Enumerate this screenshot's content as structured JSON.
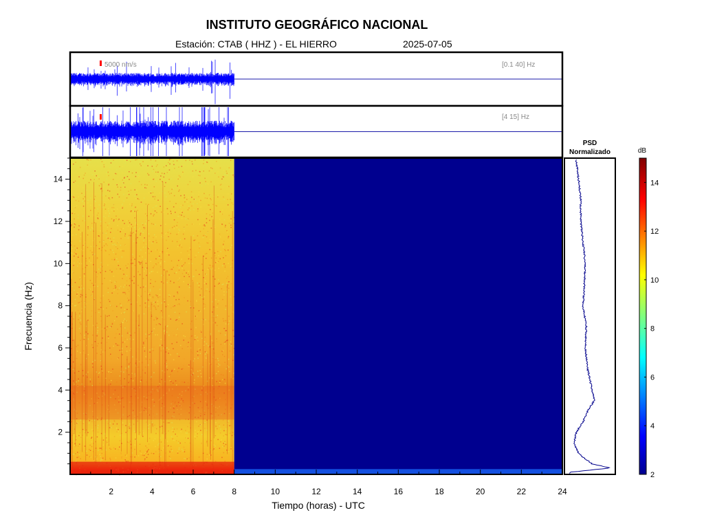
{
  "header": {
    "institution": "INSTITUTO GEOGRÁFICO NACIONAL",
    "station": "Estación:  CTAB ( HHZ ) - EL HIERRO",
    "date": "2025-07-05"
  },
  "chart_data": [
    {
      "type": "line",
      "name": "seismogram-broadband",
      "scale_label": "5000 nm/s",
      "band_label": "[0.1 40] Hz",
      "xlim": [
        0,
        24
      ],
      "data_until_hour": 8,
      "colors": {
        "trace": "#0000ff",
        "scale_bar": "#ff0000"
      }
    },
    {
      "type": "line",
      "name": "seismogram-filtered",
      "band_label": "[4 15] Hz",
      "xlim": [
        0,
        24
      ],
      "data_until_hour": 8,
      "colors": {
        "trace": "#0000ff",
        "scale_bar": "#ff0000"
      }
    },
    {
      "type": "heatmap",
      "name": "spectrogram",
      "xlabel": "Tiempo (horas) - UTC",
      "ylabel": "Frecuencia  (Hz)",
      "xlim": [
        0,
        24
      ],
      "ylim": [
        0,
        15
      ],
      "x_ticks": [
        2,
        4,
        6,
        8,
        10,
        12,
        14,
        16,
        18,
        20,
        22,
        24
      ],
      "y_ticks": [
        2,
        4,
        6,
        8,
        10,
        12,
        14
      ],
      "data_until_hour": 8,
      "empty_color": "#00008f",
      "high_energy_bands_hz": [
        [
          0,
          0.6
        ],
        [
          2.6,
          4.2
        ]
      ]
    },
    {
      "type": "line",
      "name": "psd-normalized",
      "title": "PSD\nNormalizado",
      "title_line1": "PSD",
      "title_line2": "Normalizado",
      "freq_hz": [
        0.1,
        0.3,
        0.5,
        0.8,
        1.0,
        1.5,
        2.0,
        2.5,
        3.0,
        3.5,
        4.0,
        4.5,
        5.0,
        6.0,
        7.0,
        8.0,
        9.0,
        10.0,
        11.0,
        12.0,
        13.0,
        14.0,
        14.9
      ],
      "level": [
        0.05,
        0.95,
        0.55,
        0.35,
        0.25,
        0.15,
        0.2,
        0.35,
        0.45,
        0.6,
        0.55,
        0.5,
        0.45,
        0.4,
        0.42,
        0.35,
        0.38,
        0.4,
        0.35,
        0.3,
        0.3,
        0.25,
        0.2
      ],
      "colors": {
        "line": "#00008b"
      }
    },
    {
      "type": "colorbar",
      "name": "colorbar-db",
      "label": "dB",
      "range": [
        2,
        15
      ],
      "ticks": [
        2,
        4,
        6,
        8,
        10,
        12,
        14
      ]
    }
  ]
}
